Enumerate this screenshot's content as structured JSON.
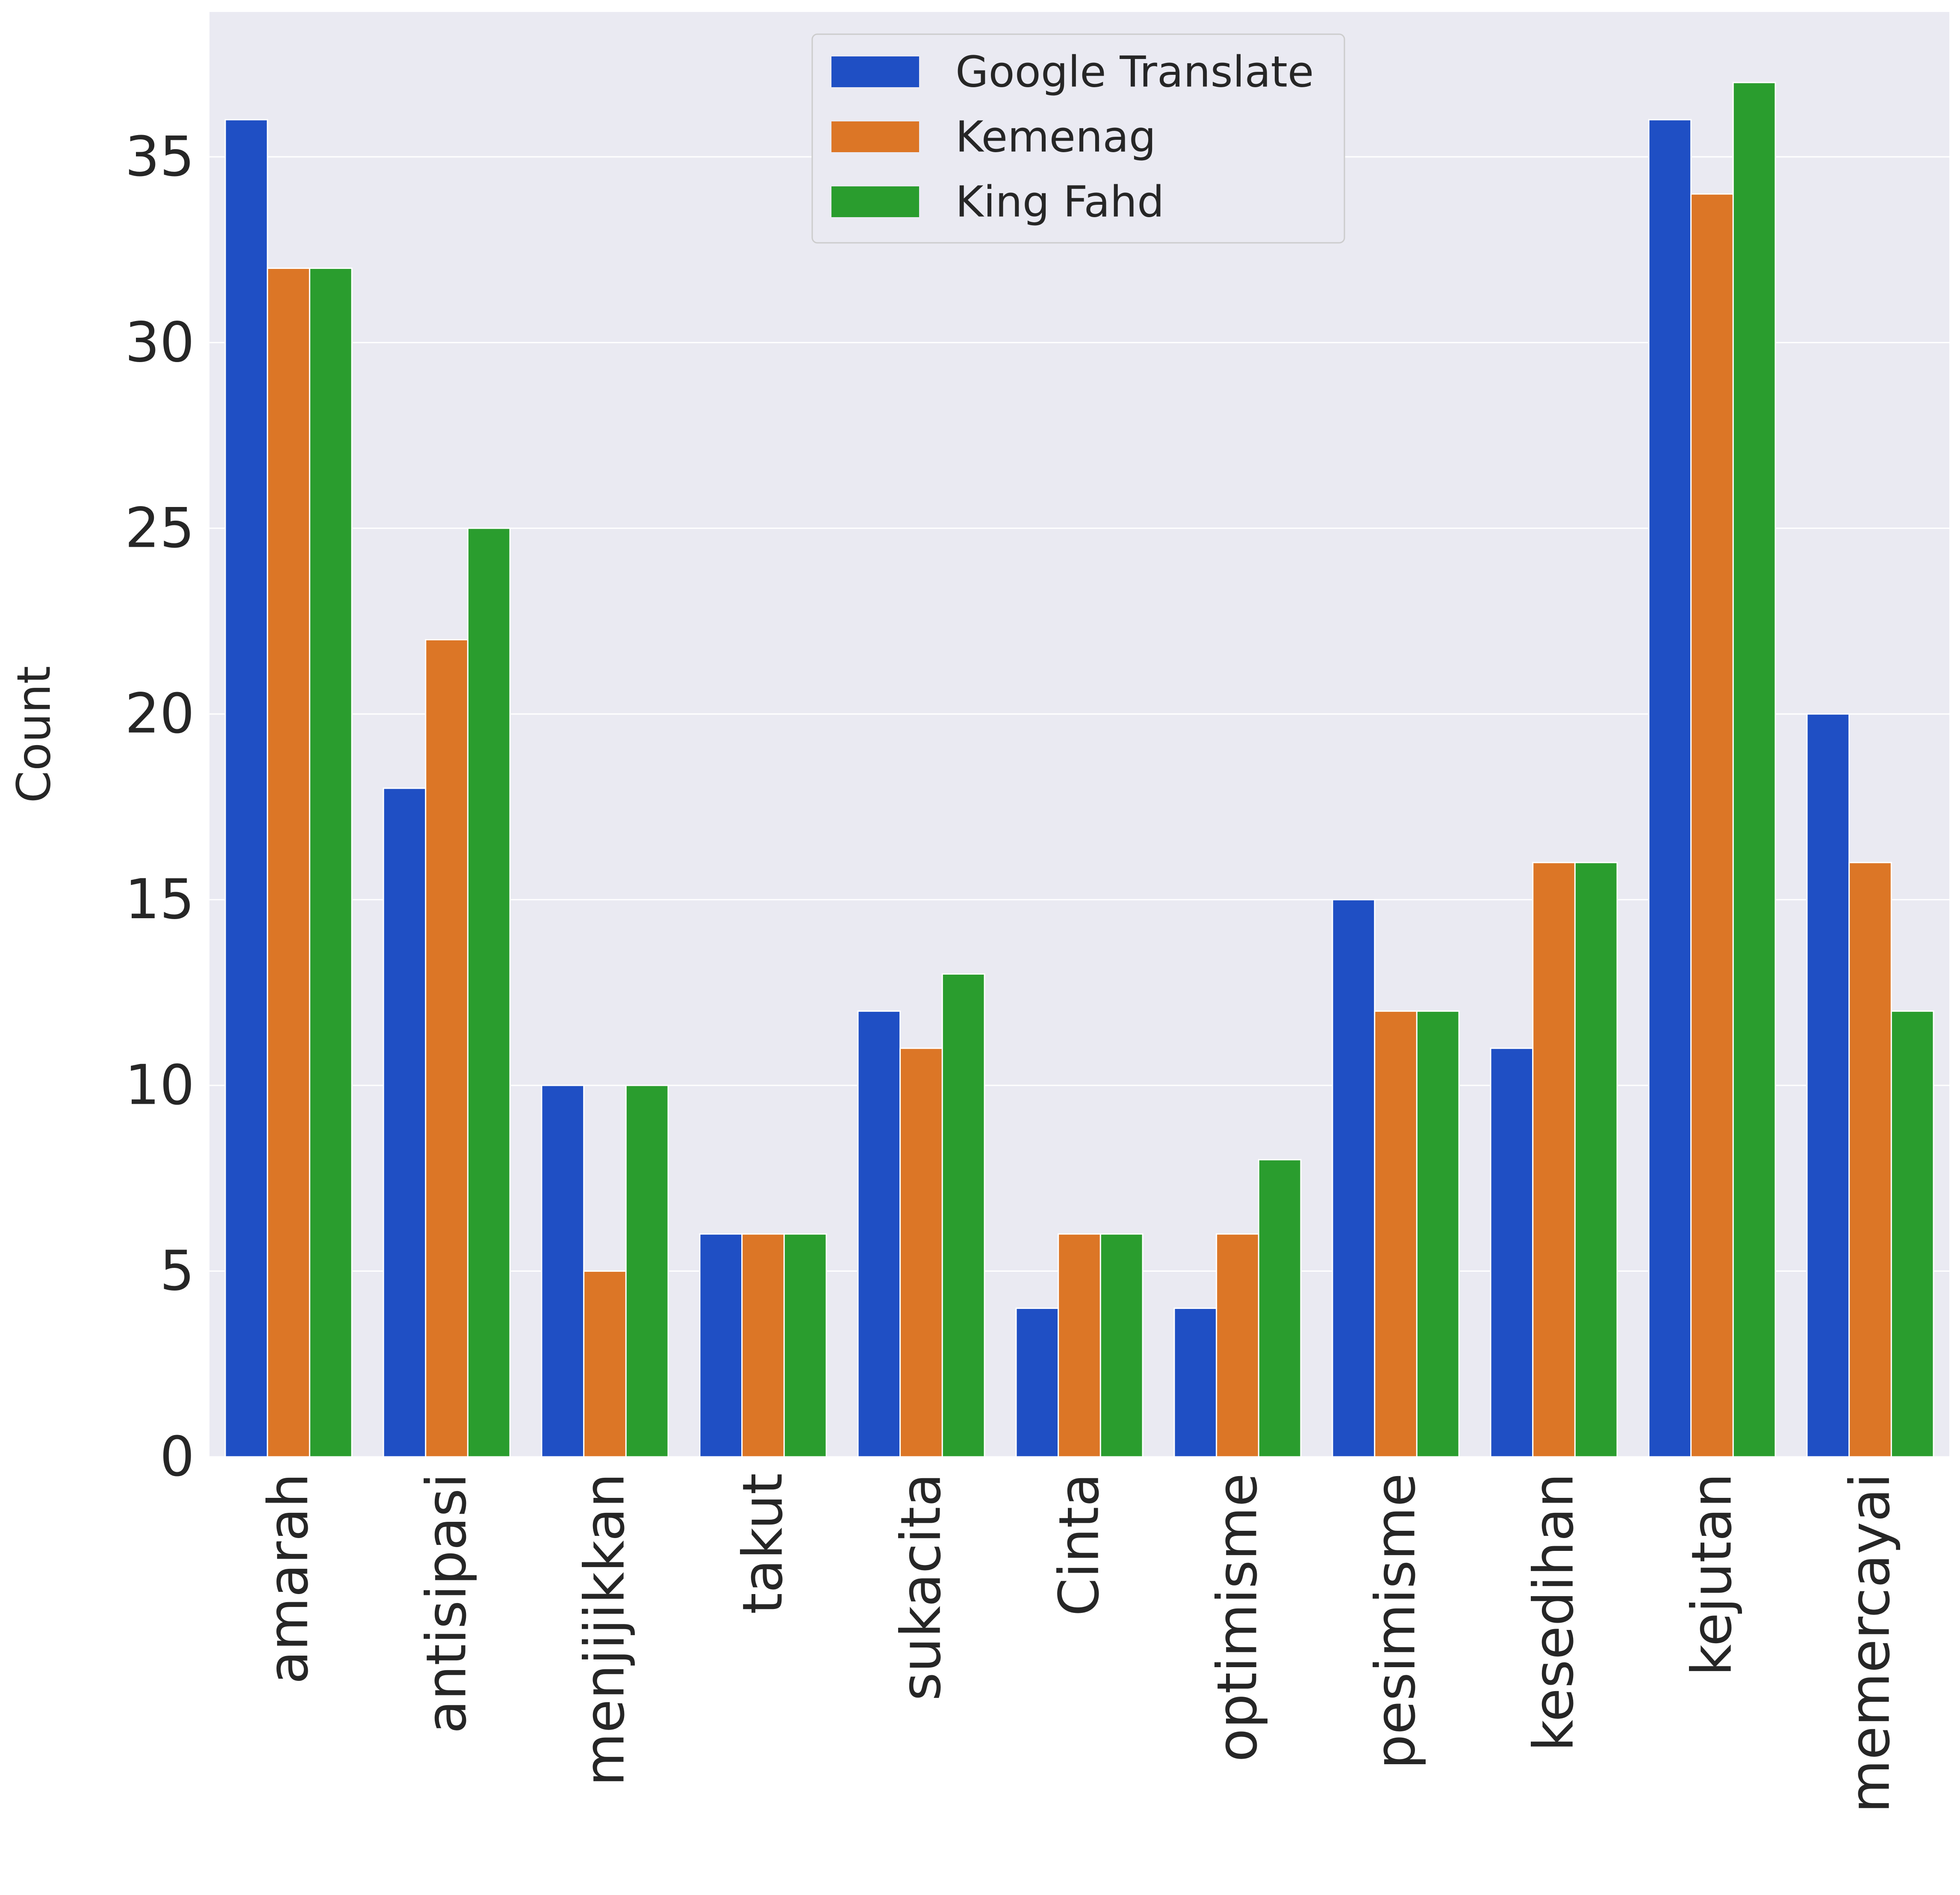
{
  "chart_data": {
    "type": "bar",
    "title": "",
    "xlabel": "",
    "ylabel": "Count",
    "ylim": [
      0,
      38.9
    ],
    "yticks": [
      0,
      5,
      10,
      15,
      20,
      25,
      30,
      35
    ],
    "grid": true,
    "legend_position": "top-center",
    "categories": [
      "amarah",
      "antisipasi",
      "menjijikkan",
      "takut",
      "sukacita",
      "Cinta",
      "optimisme",
      "pesimisme",
      "kesedihan",
      "kejutan",
      "memercayai"
    ],
    "series": [
      {
        "name": "Google Translate",
        "color": "#1f4fc4",
        "values": [
          36,
          18,
          10,
          6,
          12,
          4,
          4,
          15,
          11,
          36,
          20
        ]
      },
      {
        "name": "Kemenag",
        "color": "#dc7626",
        "values": [
          32,
          22,
          5,
          6,
          11,
          6,
          6,
          12,
          16,
          34,
          16
        ]
      },
      {
        "name": "King Fahd",
        "color": "#2a9d2e",
        "values": [
          32,
          25,
          10,
          6,
          13,
          6,
          8,
          12,
          16,
          37,
          12
        ]
      }
    ],
    "colors": {
      "background": "#eaeaf2",
      "grid": "#ffffff",
      "text": "#262626"
    }
  }
}
